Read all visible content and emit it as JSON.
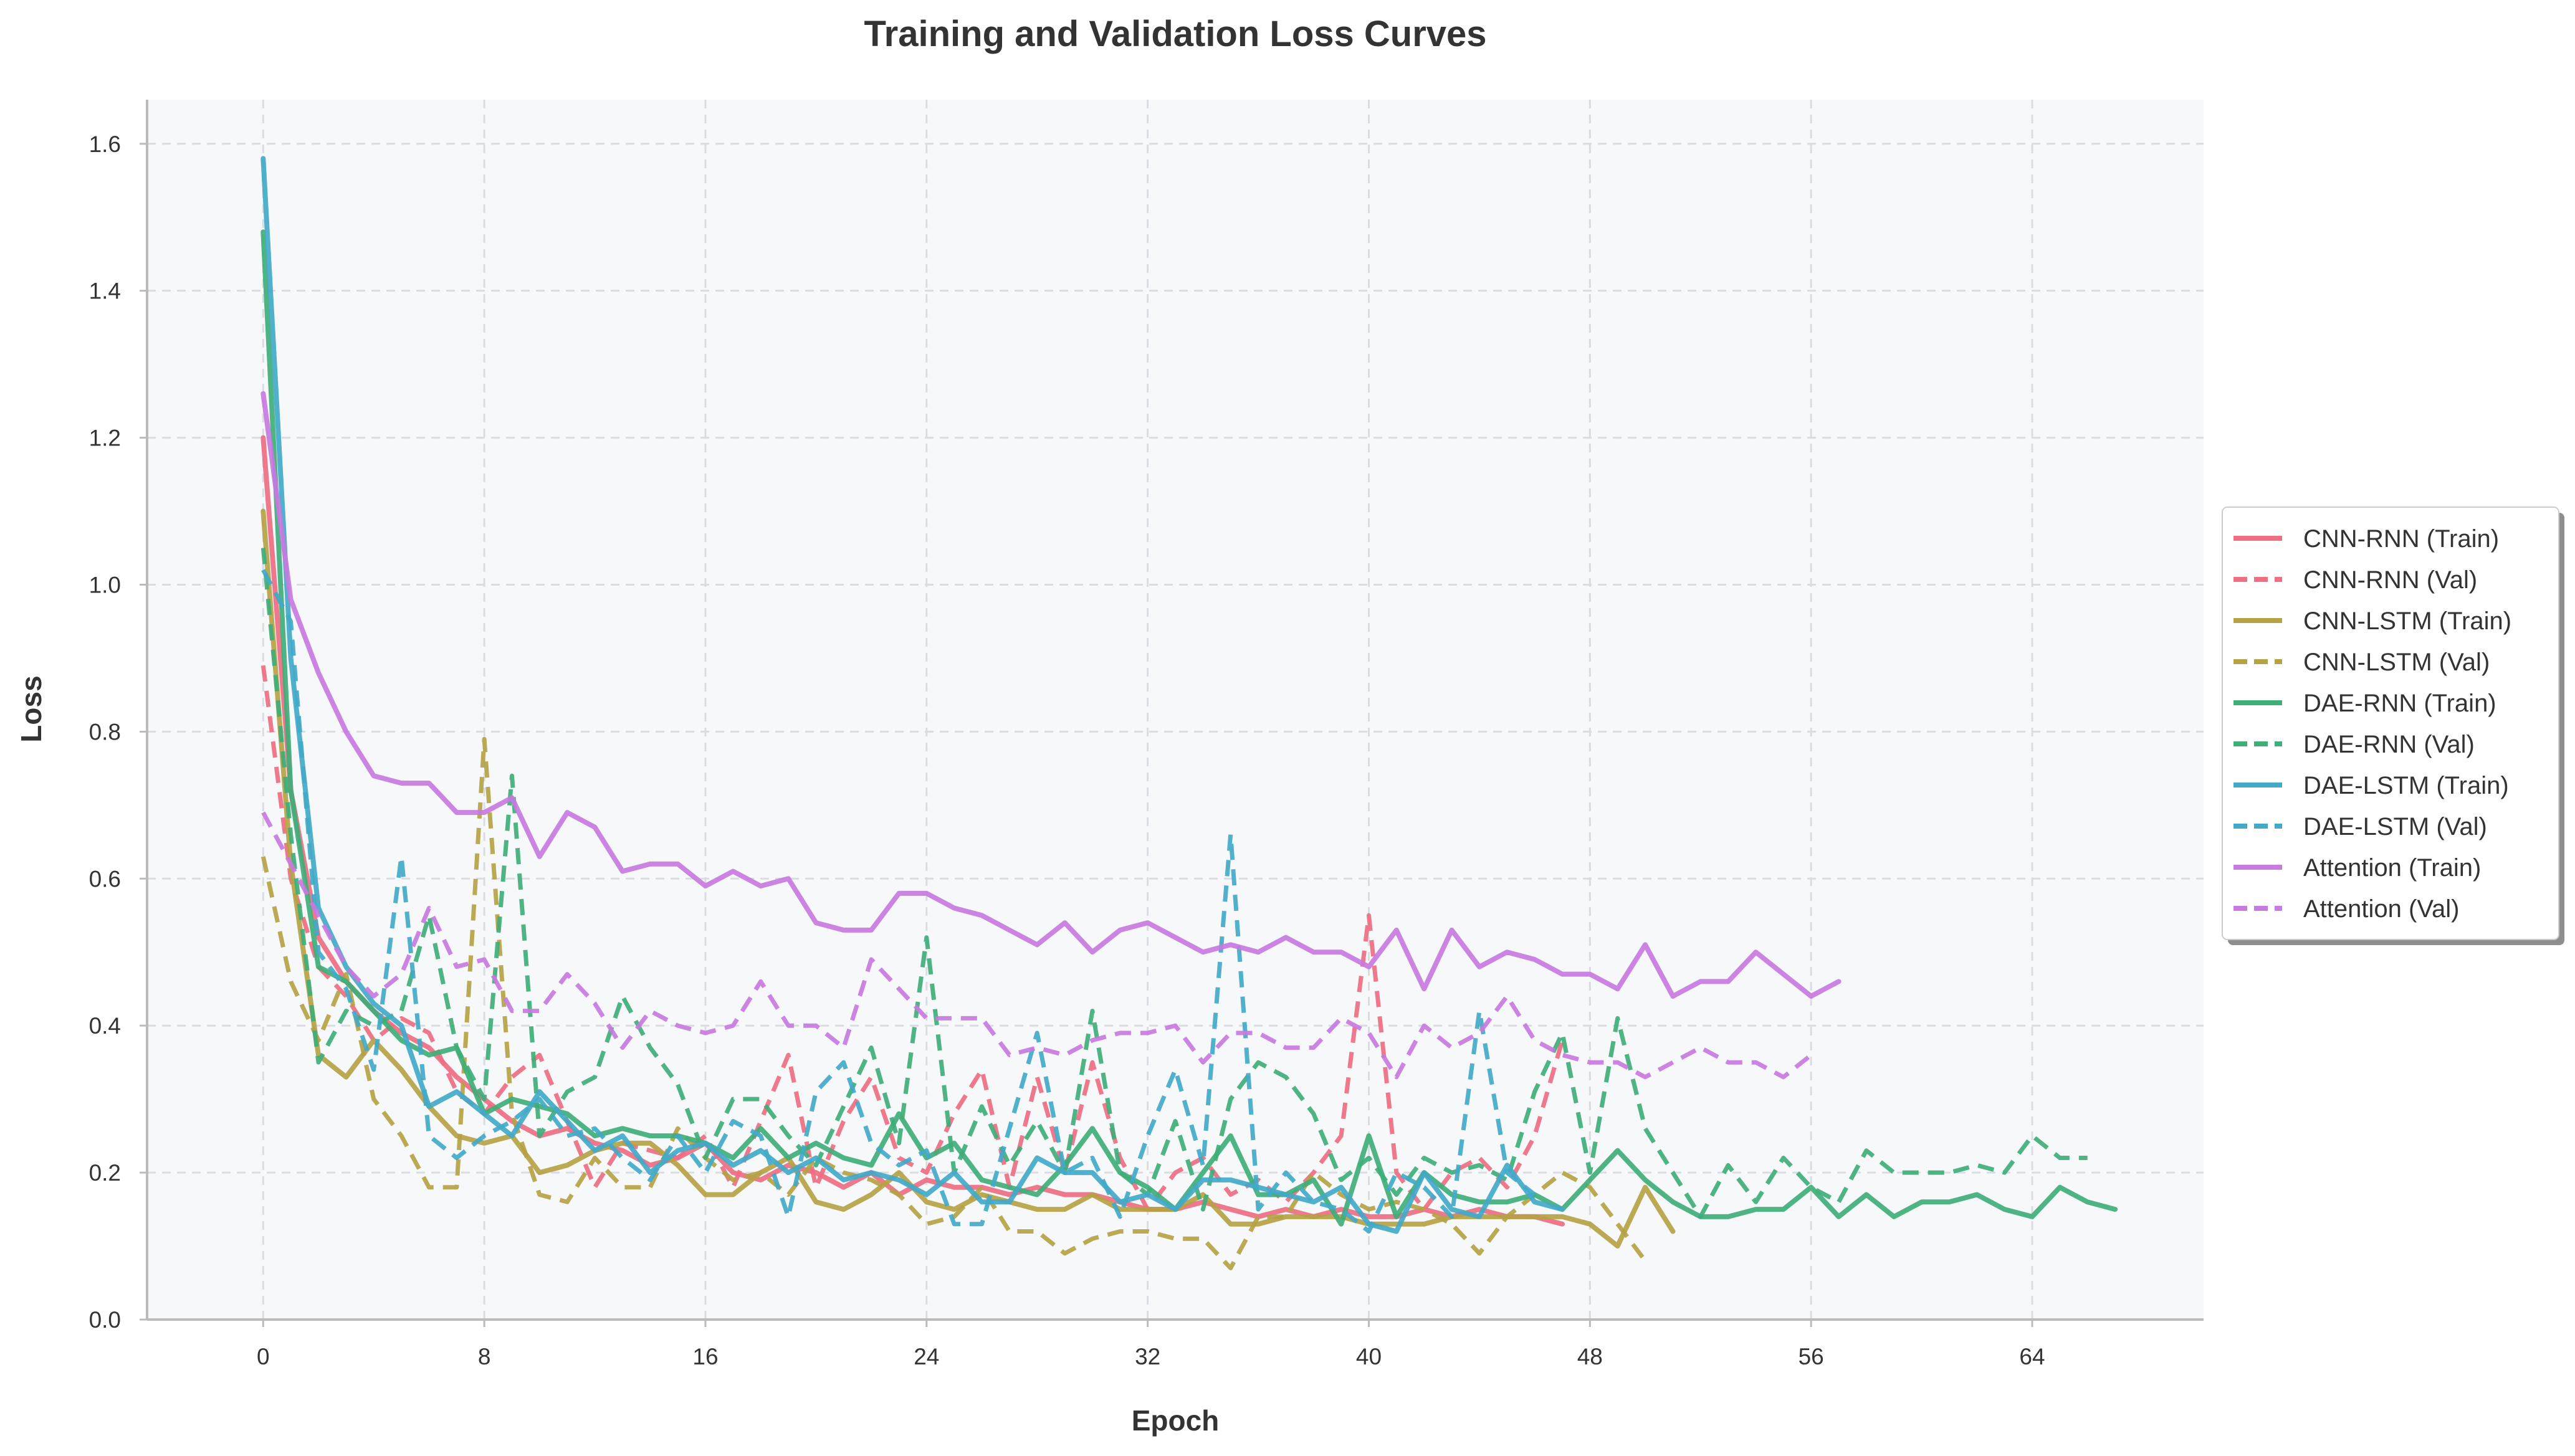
{
  "chart_data": {
    "type": "line",
    "title": "Training and Validation Loss Curves",
    "xlabel": "Epoch",
    "ylabel": "Loss",
    "xlim": [
      -4.2,
      70.2
    ],
    "ylim": [
      0.0,
      1.66
    ],
    "xticks": [
      0,
      8,
      16,
      24,
      32,
      40,
      48,
      56,
      64
    ],
    "yticks": [
      0.0,
      0.2,
      0.4,
      0.6,
      0.8,
      1.0,
      1.2,
      1.4,
      1.6
    ],
    "xtick_labels": [
      "0",
      "8",
      "16",
      "24",
      "32",
      "40",
      "48",
      "56",
      "64"
    ],
    "ytick_labels": [
      "0.0",
      "0.2",
      "0.4",
      "0.6",
      "0.8",
      "1.0",
      "1.2",
      "1.4",
      "1.6"
    ],
    "grid": true,
    "legend_position": "right",
    "background": "#f7f8fa",
    "series": [
      {
        "name": "CNN-RNN (Train)",
        "color": "#ee6e82",
        "style": "solid",
        "values": [
          1.2,
          0.72,
          0.52,
          0.46,
          0.42,
          0.39,
          0.37,
          0.33,
          0.3,
          0.27,
          0.25,
          0.26,
          0.24,
          0.23,
          0.21,
          0.22,
          0.24,
          0.2,
          0.19,
          0.21,
          0.2,
          0.18,
          0.2,
          0.17,
          0.19,
          0.18,
          0.18,
          0.17,
          0.18,
          0.17,
          0.17,
          0.16,
          0.15,
          0.15,
          0.16,
          0.15,
          0.14,
          0.15,
          0.14,
          0.15,
          0.14,
          0.14,
          0.15,
          0.14,
          0.15,
          0.14,
          0.14,
          0.13
        ]
      },
      {
        "name": "CNN-RNN (Val)",
        "color": "#ee6e82",
        "style": "dashed",
        "values": [
          0.89,
          0.6,
          0.48,
          0.44,
          0.38,
          0.41,
          0.39,
          0.31,
          0.28,
          0.33,
          0.36,
          0.27,
          0.18,
          0.24,
          0.23,
          0.22,
          0.25,
          0.18,
          0.27,
          0.36,
          0.18,
          0.27,
          0.33,
          0.22,
          0.2,
          0.28,
          0.34,
          0.18,
          0.33,
          0.2,
          0.35,
          0.22,
          0.15,
          0.2,
          0.22,
          0.17,
          0.19,
          0.16,
          0.2,
          0.25,
          0.55,
          0.2,
          0.15,
          0.2,
          0.22,
          0.18,
          0.25,
          0.38
        ]
      },
      {
        "name": "CNN-LSTM (Train)",
        "color": "#b5a245",
        "style": "solid",
        "values": [
          1.1,
          0.62,
          0.36,
          0.33,
          0.38,
          0.34,
          0.29,
          0.25,
          0.24,
          0.25,
          0.2,
          0.21,
          0.23,
          0.24,
          0.24,
          0.21,
          0.17,
          0.17,
          0.2,
          0.22,
          0.16,
          0.15,
          0.17,
          0.2,
          0.16,
          0.15,
          0.17,
          0.16,
          0.15,
          0.15,
          0.17,
          0.15,
          0.15,
          0.15,
          0.17,
          0.13,
          0.13,
          0.14,
          0.14,
          0.14,
          0.13,
          0.13,
          0.13,
          0.14,
          0.14,
          0.14,
          0.14,
          0.14,
          0.13,
          0.1,
          0.18,
          0.12
        ]
      },
      {
        "name": "CNN-LSTM (Val)",
        "color": "#b5a245",
        "style": "dashed",
        "values": [
          0.63,
          0.46,
          0.38,
          0.47,
          0.3,
          0.25,
          0.18,
          0.18,
          0.79,
          0.28,
          0.17,
          0.16,
          0.22,
          0.18,
          0.18,
          0.26,
          0.22,
          0.19,
          0.2,
          0.17,
          0.22,
          0.2,
          0.19,
          0.17,
          0.13,
          0.14,
          0.18,
          0.12,
          0.12,
          0.09,
          0.11,
          0.12,
          0.12,
          0.11,
          0.11,
          0.07,
          0.14,
          0.14,
          0.2,
          0.17,
          0.15,
          0.16,
          0.15,
          0.13,
          0.09,
          0.14,
          0.17,
          0.2,
          0.18,
          0.13,
          0.08
        ]
      },
      {
        "name": "DAE-RNN (Train)",
        "color": "#3fae78",
        "style": "solid",
        "values": [
          1.48,
          0.72,
          0.48,
          0.46,
          0.42,
          0.38,
          0.36,
          0.37,
          0.28,
          0.3,
          0.29,
          0.28,
          0.25,
          0.26,
          0.25,
          0.25,
          0.24,
          0.22,
          0.26,
          0.22,
          0.24,
          0.22,
          0.21,
          0.28,
          0.22,
          0.24,
          0.19,
          0.18,
          0.17,
          0.21,
          0.26,
          0.2,
          0.18,
          0.15,
          0.2,
          0.25,
          0.17,
          0.17,
          0.19,
          0.13,
          0.25,
          0.14,
          0.2,
          0.17,
          0.16,
          0.16,
          0.17,
          0.15,
          0.19,
          0.23,
          0.19,
          0.16,
          0.14,
          0.14,
          0.15,
          0.15,
          0.18,
          0.14,
          0.17,
          0.14,
          0.16,
          0.16,
          0.17,
          0.15,
          0.14,
          0.18,
          0.16,
          0.15
        ]
      },
      {
        "name": "DAE-RNN (Val)",
        "color": "#3fae78",
        "style": "dashed",
        "values": [
          1.05,
          0.66,
          0.35,
          0.42,
          0.4,
          0.42,
          0.55,
          0.37,
          0.3,
          0.74,
          0.25,
          0.31,
          0.33,
          0.44,
          0.37,
          0.32,
          0.22,
          0.3,
          0.3,
          0.25,
          0.21,
          0.29,
          0.37,
          0.24,
          0.52,
          0.2,
          0.29,
          0.21,
          0.27,
          0.2,
          0.42,
          0.2,
          0.17,
          0.27,
          0.15,
          0.3,
          0.35,
          0.33,
          0.28,
          0.19,
          0.22,
          0.17,
          0.22,
          0.2,
          0.21,
          0.19,
          0.31,
          0.39,
          0.2,
          0.41,
          0.26,
          0.2,
          0.14,
          0.21,
          0.16,
          0.22,
          0.18,
          0.16,
          0.23,
          0.2,
          0.2,
          0.2,
          0.21,
          0.2,
          0.25,
          0.22,
          0.22
        ]
      },
      {
        "name": "DAE-LSTM (Train)",
        "color": "#42a9c8",
        "style": "solid",
        "values": [
          1.58,
          0.9,
          0.56,
          0.48,
          0.43,
          0.4,
          0.29,
          0.31,
          0.28,
          0.25,
          0.31,
          0.27,
          0.23,
          0.25,
          0.2,
          0.23,
          0.24,
          0.21,
          0.23,
          0.2,
          0.22,
          0.19,
          0.2,
          0.19,
          0.17,
          0.2,
          0.16,
          0.16,
          0.22,
          0.2,
          0.2,
          0.16,
          0.17,
          0.15,
          0.19,
          0.19,
          0.18,
          0.17,
          0.16,
          0.18,
          0.13,
          0.12,
          0.2,
          0.15,
          0.14,
          0.21,
          0.16,
          0.15
        ]
      },
      {
        "name": "DAE-LSTM (Val)",
        "color": "#42a9c8",
        "style": "dashed",
        "values": [
          1.02,
          0.95,
          0.5,
          0.45,
          0.34,
          0.63,
          0.25,
          0.22,
          0.25,
          0.27,
          0.3,
          0.25,
          0.26,
          0.22,
          0.19,
          0.25,
          0.2,
          0.27,
          0.25,
          0.14,
          0.31,
          0.35,
          0.24,
          0.21,
          0.23,
          0.13,
          0.13,
          0.26,
          0.39,
          0.2,
          0.22,
          0.14,
          0.25,
          0.34,
          0.21,
          0.66,
          0.15,
          0.2,
          0.16,
          0.15,
          0.12,
          0.2,
          0.18,
          0.14,
          0.42,
          0.2,
          0.17
        ]
      },
      {
        "name": "Attention (Train)",
        "color": "#c87ae0",
        "style": "solid",
        "values": [
          1.26,
          0.98,
          0.88,
          0.8,
          0.74,
          0.73,
          0.73,
          0.69,
          0.69,
          0.71,
          0.63,
          0.69,
          0.67,
          0.61,
          0.62,
          0.62,
          0.59,
          0.61,
          0.59,
          0.6,
          0.54,
          0.53,
          0.53,
          0.58,
          0.58,
          0.56,
          0.55,
          0.53,
          0.51,
          0.54,
          0.5,
          0.53,
          0.54,
          0.52,
          0.5,
          0.51,
          0.5,
          0.52,
          0.5,
          0.5,
          0.48,
          0.53,
          0.45,
          0.53,
          0.48,
          0.5,
          0.49,
          0.47,
          0.47,
          0.45,
          0.51,
          0.44,
          0.46,
          0.46,
          0.5,
          0.47,
          0.44,
          0.46
        ]
      },
      {
        "name": "Attention (Val)",
        "color": "#c87ae0",
        "style": "dashed",
        "values": [
          0.69,
          0.62,
          0.55,
          0.48,
          0.44,
          0.47,
          0.56,
          0.48,
          0.49,
          0.42,
          0.42,
          0.47,
          0.43,
          0.37,
          0.42,
          0.4,
          0.39,
          0.4,
          0.46,
          0.4,
          0.4,
          0.37,
          0.49,
          0.45,
          0.41,
          0.41,
          0.41,
          0.36,
          0.37,
          0.36,
          0.38,
          0.39,
          0.39,
          0.4,
          0.35,
          0.39,
          0.39,
          0.37,
          0.37,
          0.41,
          0.39,
          0.33,
          0.4,
          0.37,
          0.39,
          0.44,
          0.38,
          0.36,
          0.35,
          0.35,
          0.33,
          0.35,
          0.37,
          0.35,
          0.35,
          0.33,
          0.36
        ]
      }
    ]
  }
}
